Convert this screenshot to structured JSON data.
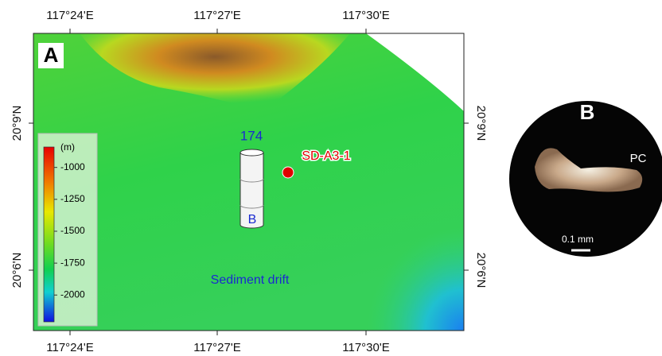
{
  "panel_a": {
    "label": "A",
    "longitude_labels": [
      "117°24'E",
      "117°27'E",
      "117°30'E"
    ],
    "latitude_labels": [
      "20°9'N",
      "20°6'N"
    ],
    "core": {
      "label": "174",
      "section": "B"
    },
    "site": "SD-A3-1",
    "feature": "Sediment drift",
    "colorbar": {
      "unit": "(m)",
      "range": [
        -840,
        -2210
      ],
      "ticks": [
        -1000,
        -1250,
        -1500,
        -1750,
        -2000
      ]
    }
  },
  "panel_b": {
    "label": "B",
    "annotation": "PC",
    "scale_bar": "0.1 mm"
  }
}
